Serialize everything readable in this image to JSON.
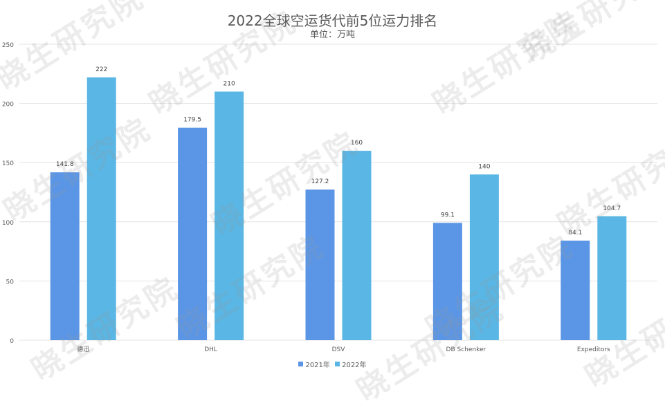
{
  "chart_data": {
    "type": "bar",
    "title": "2022全球空运货代前5位运力排名",
    "subtitle": "单位：万吨",
    "categories": [
      "德迅",
      "DHL",
      "DSV",
      "DB Schenker",
      "Expeditors"
    ],
    "series": [
      {
        "name": "2021年",
        "values": [
          141.8,
          179.5,
          127.2,
          99.1,
          84.1
        ],
        "color": "#5b96e6"
      },
      {
        "name": "2022年",
        "values": [
          222,
          210,
          160,
          140,
          104.7
        ],
        "color": "#5ab6e4"
      }
    ],
    "value_labels": [
      [
        "141.8",
        "179.5",
        "127.2",
        "99.1",
        "84.1"
      ],
      [
        "222",
        "210",
        "160",
        "140",
        "104.7"
      ]
    ],
    "ylim": [
      0,
      250
    ],
    "yticks": [
      "0",
      "50",
      "100",
      "150",
      "200",
      "250"
    ],
    "grid": true,
    "legend_position": "bottom"
  },
  "watermark": "晓生研究院"
}
